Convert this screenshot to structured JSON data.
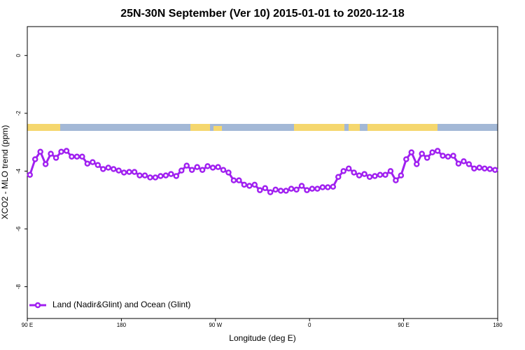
{
  "chart_data": {
    "type": "line",
    "title": "25N-30N September (Ver 10)   2015-01-01 to 2020-12-18",
    "x_label": "Longitude (deg E)",
    "y_label": "XCO2 - MLO trend (ppm)",
    "xlim": [
      90,
      540
    ],
    "ylim": [
      -9.1,
      1.0
    ],
    "xticks": [
      {
        "value": 90,
        "label": "90 E"
      },
      180,
      {
        "value": 270,
        "label": "90 W"
      },
      {
        "value": 360,
        "label": "0"
      },
      {
        "value": 450,
        "label": "90 E"
      },
      {
        "value": 540,
        "label": "180"
      }
    ],
    "yticks": [
      0,
      -2,
      -4,
      -6,
      -8
    ],
    "legend": "bottom-left",
    "x": [
      92.5,
      97.5,
      102.5,
      107.5,
      112.5,
      117.5,
      122.5,
      127.5,
      132.5,
      137.5,
      142.5,
      147.5,
      152.5,
      157.5,
      162.5,
      167.5,
      172.5,
      177.5,
      182.5,
      187.5,
      192.5,
      197.5,
      202.5,
      207.5,
      212.5,
      217.5,
      222.5,
      227.5,
      232.5,
      237.5,
      242.5,
      247.5,
      252.5,
      257.5,
      262.5,
      267.5,
      272.5,
      277.5,
      282.5,
      287.5,
      292.5,
      297.5,
      302.5,
      307.5,
      312.5,
      317.5,
      322.5,
      327.5,
      332.5,
      337.5,
      342.5,
      347.5,
      352.5,
      357.5,
      362.5,
      367.5,
      372.5,
      377.5,
      382.5,
      387.5,
      392.5,
      397.5,
      402.5,
      407.5,
      412.5,
      417.5,
      422.5,
      427.5,
      432.5,
      437.5,
      442.5,
      447.5,
      452.5,
      457.5,
      462.5,
      467.5,
      472.5,
      477.5,
      482.5,
      487.5,
      492.5,
      497.5,
      502.5,
      507.5,
      512.5,
      517.5,
      522.5,
      527.5,
      532.5,
      537.5
    ],
    "series": [
      {
        "name": "Land (Nadir&Glint) and Ocean (Glint)",
        "color": "#a020f0",
        "values": [
          -4.13,
          -3.59,
          -3.33,
          -3.76,
          -3.4,
          -3.54,
          -3.33,
          -3.3,
          -3.5,
          -3.5,
          -3.5,
          -3.74,
          -3.69,
          -3.79,
          -3.93,
          -3.88,
          -3.93,
          -3.98,
          -4.05,
          -4.03,
          -4.03,
          -4.15,
          -4.15,
          -4.22,
          -4.22,
          -4.17,
          -4.15,
          -4.1,
          -4.17,
          -3.98,
          -3.81,
          -3.96,
          -3.86,
          -3.96,
          -3.83,
          -3.88,
          -3.86,
          -3.96,
          -4.05,
          -4.32,
          -4.32,
          -4.47,
          -4.51,
          -4.47,
          -4.66,
          -4.59,
          -4.73,
          -4.64,
          -4.68,
          -4.68,
          -4.61,
          -4.64,
          -4.51,
          -4.66,
          -4.61,
          -4.61,
          -4.56,
          -4.56,
          -4.54,
          -4.2,
          -4.0,
          -3.91,
          -4.05,
          -4.15,
          -4.1,
          -4.2,
          -4.17,
          -4.13,
          -4.13,
          -4.0,
          -4.32,
          -4.15,
          -3.59,
          -3.35,
          -3.76,
          -3.4,
          -3.54,
          -3.35,
          -3.3,
          -3.47,
          -3.5,
          -3.47,
          -3.74,
          -3.66,
          -3.76,
          -3.91,
          -3.88,
          -3.91,
          -3.93,
          -3.96
        ]
      }
    ]
  }
}
